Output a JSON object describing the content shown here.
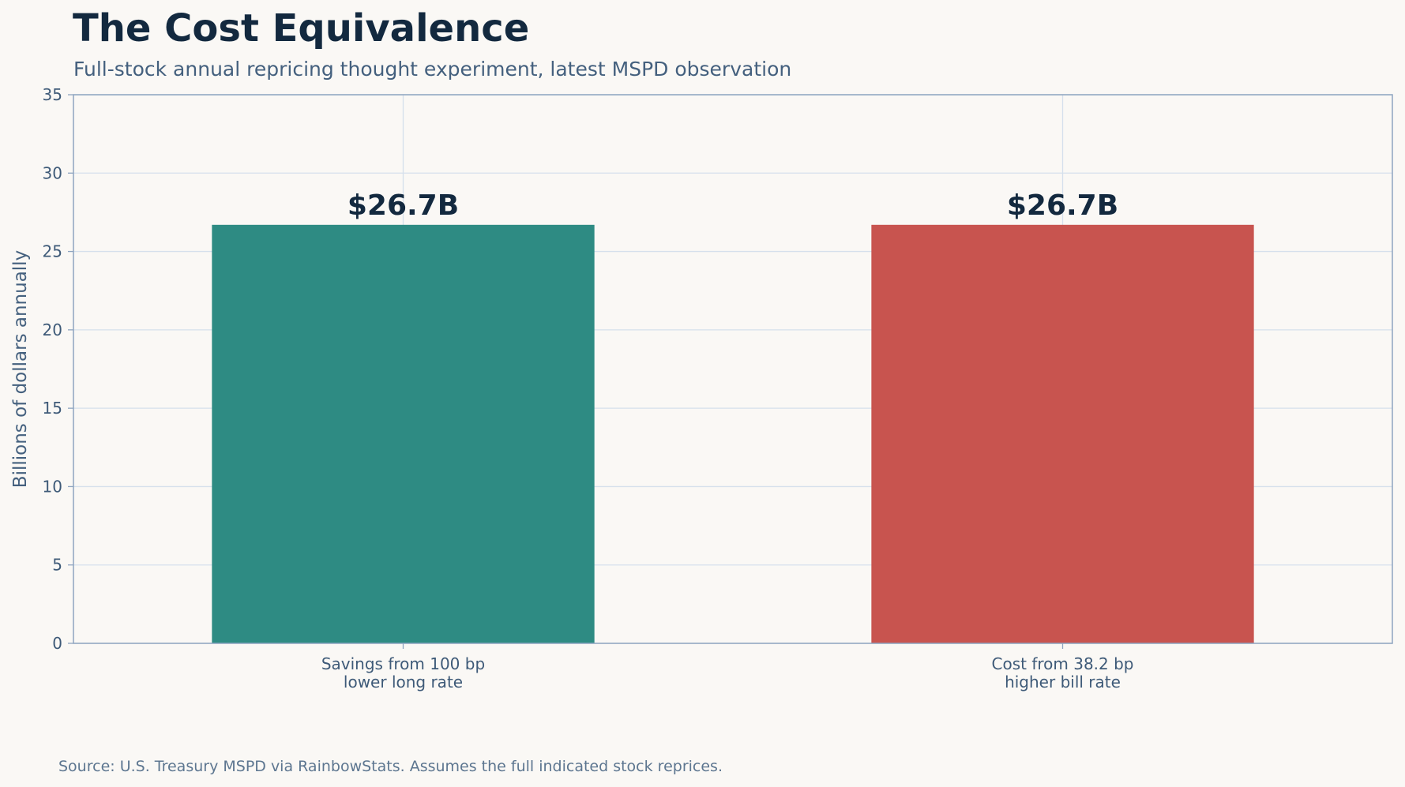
{
  "title": "The Cost Equivalence",
  "subtitle": "Full-stock annual repricing thought experiment, latest MSPD observation",
  "source": "Source: U.S. Treasury MSPD via RainbowStats. Assumes the full indicated stock reprices.",
  "chart_data": {
    "type": "bar",
    "title": "The Cost Equivalence",
    "subtitle": "Full-stock annual repricing thought experiment, latest MSPD observation",
    "categories": [
      [
        "Savings from 100 bp",
        "lower long rate"
      ],
      [
        "Cost from 38.2 bp",
        "higher bill rate"
      ]
    ],
    "values": [
      26.7,
      26.7
    ],
    "data_labels": [
      "$26.7B",
      "$26.7B"
    ],
    "bar_colors": [
      "#2e8b83",
      "#c8544f"
    ],
    "xlabel": "",
    "ylabel": "Billions of dollars annually",
    "ylim": [
      0,
      35
    ],
    "yticks": [
      0,
      5,
      10,
      15,
      20,
      25,
      30,
      35
    ],
    "grid": true,
    "legend": "none"
  },
  "colors": {
    "background": "#faf8f5",
    "title": "#13293f",
    "text": "#44607e",
    "grid": "#d5e0ec",
    "axis": "#8ea4c0"
  }
}
